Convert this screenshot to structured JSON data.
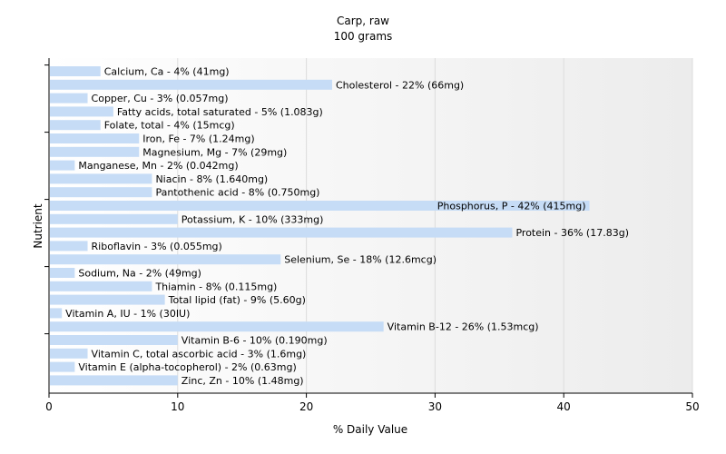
{
  "chart_data": {
    "type": "bar",
    "orientation": "horizontal",
    "title": "Carp, raw",
    "subtitle": "100 grams",
    "xlabel": "% Daily Value",
    "ylabel": "Nutrient",
    "xlim": [
      0,
      50
    ],
    "xticks": [
      0,
      10,
      20,
      30,
      40,
      50
    ],
    "grid": true,
    "bar_color": "#c6dcf6",
    "categories": [
      "Calcium, Ca",
      "Cholesterol",
      "Copper, Cu",
      "Fatty acids, total saturated",
      "Folate, total",
      "Iron, Fe",
      "Magnesium, Mg",
      "Manganese, Mn",
      "Niacin",
      "Pantothenic acid",
      "Phosphorus, P",
      "Potassium, K",
      "Protein",
      "Riboflavin",
      "Selenium, Se",
      "Sodium, Na",
      "Thiamin",
      "Total lipid (fat)",
      "Vitamin A, IU",
      "Vitamin B-12",
      "Vitamin B-6",
      "Vitamin C, total ascorbic acid",
      "Vitamin E (alpha-tocopherol)",
      "Zinc, Zn"
    ],
    "values": [
      4,
      22,
      3,
      5,
      4,
      7,
      7,
      2,
      8,
      8,
      42,
      10,
      36,
      3,
      18,
      2,
      8,
      9,
      1,
      26,
      10,
      3,
      2,
      10
    ],
    "labels": [
      "Calcium, Ca - 4% (41mg)",
      "Cholesterol - 22% (66mg)",
      "Copper, Cu - 3% (0.057mg)",
      "Fatty acids, total saturated - 5% (1.083g)",
      "Folate, total - 4% (15mcg)",
      "Iron, Fe - 7% (1.24mg)",
      "Magnesium, Mg - 7% (29mg)",
      "Manganese, Mn - 2% (0.042mg)",
      "Niacin - 8% (1.640mg)",
      "Pantothenic acid - 8% (0.750mg)",
      "Phosphorus, P - 42% (415mg)",
      "Potassium, K - 10% (333mg)",
      "Protein - 36% (17.83g)",
      "Riboflavin - 3% (0.055mg)",
      "Selenium, Se - 18% (12.6mcg)",
      "Sodium, Na - 2% (49mg)",
      "Thiamin - 8% (0.115mg)",
      "Total lipid (fat) - 9% (5.60g)",
      "Vitamin A, IU - 1% (30IU)",
      "Vitamin B-12 - 26% (1.53mcg)",
      "Vitamin B-6 - 10% (0.190mg)",
      "Vitamin C, total ascorbic acid - 3% (1.6mg)",
      "Vitamin E (alpha-tocopherol) - 2% (0.63mg)",
      "Zinc, Zn - 10% (1.48mg)"
    ]
  }
}
